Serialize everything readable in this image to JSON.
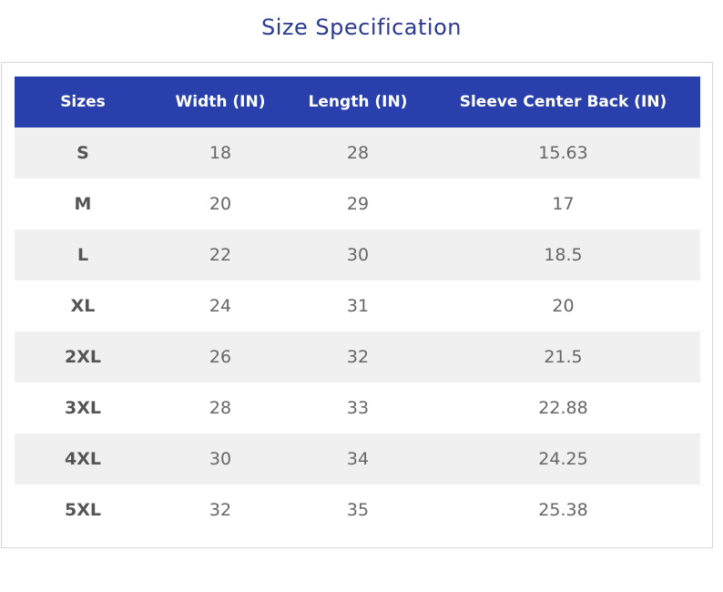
{
  "title": "Size Specification",
  "table": {
    "headers": [
      "Sizes",
      "Width (IN)",
      "Length (IN)",
      "Sleeve Center Back (IN)"
    ],
    "rows": [
      [
        "S",
        "18",
        "28",
        "15.63"
      ],
      [
        "M",
        "20",
        "29",
        "17"
      ],
      [
        "L",
        "22",
        "30",
        "18.5"
      ],
      [
        "XL",
        "24",
        "31",
        "20"
      ],
      [
        "2XL",
        "26",
        "32",
        "21.5"
      ],
      [
        "3XL",
        "28",
        "33",
        "22.88"
      ],
      [
        "4XL",
        "30",
        "34",
        "24.25"
      ],
      [
        "5XL",
        "32",
        "35",
        "25.38"
      ]
    ]
  },
  "colors": {
    "header_bg": "#2940ac",
    "title": "#2b3990",
    "stripe": "#f0f0f0"
  }
}
